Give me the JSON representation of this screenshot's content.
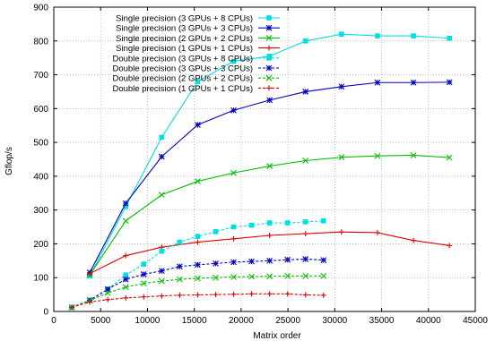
{
  "chart_data": {
    "type": "line",
    "title": "",
    "xlabel": "Matrix order",
    "ylabel": "Gflop/s",
    "xlim": [
      0,
      45000
    ],
    "ylim": [
      0,
      900
    ],
    "xticks": [
      0,
      5000,
      10000,
      15000,
      20000,
      25000,
      30000,
      35000,
      40000,
      45000
    ],
    "yticks": [
      0,
      100,
      200,
      300,
      400,
      500,
      600,
      700,
      800,
      900
    ],
    "grid": true,
    "legend_position": "top-left",
    "series": [
      {
        "name": "Single precision (3 GPUs + 8 CPUs)",
        "color": "#00e0e0",
        "marker": "filled-square",
        "dash": "solid",
        "x": [
          3840,
          7680,
          11520,
          15360,
          19200,
          23040,
          26880,
          30720,
          34560,
          38400,
          42240
        ],
        "y": [
          105,
          310,
          515,
          680,
          740,
          755,
          800,
          820,
          815,
          815,
          808
        ]
      },
      {
        "name": "Single precision (3 GPUs + 3 CPUs)",
        "color": "#0000c8",
        "marker": "asterisk",
        "dash": "solid",
        "x": [
          3840,
          7680,
          11520,
          15360,
          19200,
          23040,
          26880,
          30720,
          34560,
          38400,
          42240
        ],
        "y": [
          115,
          320,
          458,
          552,
          595,
          625,
          650,
          665,
          677,
          677,
          678
        ]
      },
      {
        "name": "Single precision (2 GPUs + 2 CPUs)",
        "color": "#00c000",
        "marker": "x",
        "dash": "solid",
        "x": [
          3840,
          7680,
          11520,
          15360,
          19200,
          23040,
          26880,
          30720,
          34560,
          38400,
          42240
        ],
        "y": [
          108,
          268,
          345,
          385,
          410,
          430,
          446,
          456,
          460,
          462,
          455
        ]
      },
      {
        "name": "Single precision (1 GPUs + 1 CPUs)",
        "color": "#e00000",
        "marker": "plus",
        "dash": "solid",
        "x": [
          3840,
          7680,
          11520,
          15360,
          19200,
          23040,
          26880,
          30720,
          34560,
          38400,
          42240
        ],
        "y": [
          112,
          165,
          190,
          205,
          215,
          225,
          230,
          235,
          233,
          210,
          195
        ]
      },
      {
        "name": "Double precision (3 GPUs + 8 CPUs)",
        "color": "#00e0e0",
        "marker": "filled-square",
        "dash": "dashed",
        "x": [
          1920,
          3840,
          5760,
          7680,
          9600,
          11520,
          13440,
          15360,
          17280,
          19200,
          21120,
          23040,
          24960,
          26880,
          28800
        ],
        "y": [
          12,
          33,
          65,
          108,
          140,
          178,
          205,
          222,
          236,
          250,
          255,
          262,
          262,
          265,
          268
        ]
      },
      {
        "name": "Double precision (3 GPUs + 3 CPUs)",
        "color": "#0000c8",
        "marker": "asterisk",
        "dash": "dashed",
        "x": [
          1920,
          3840,
          5760,
          7680,
          9600,
          11520,
          13440,
          15360,
          17280,
          19200,
          21120,
          23040,
          24960,
          26880,
          28800
        ],
        "y": [
          12,
          33,
          66,
          95,
          110,
          120,
          133,
          138,
          142,
          146,
          148,
          150,
          153,
          155,
          152
        ]
      },
      {
        "name": "Double precision (2 GPUs + 2 CPUs)",
        "color": "#00c000",
        "marker": "x",
        "dash": "dashed",
        "x": [
          1920,
          3840,
          5760,
          7680,
          9600,
          11520,
          13440,
          15360,
          17280,
          19200,
          21120,
          23040,
          24960,
          26880,
          28800
        ],
        "y": [
          12,
          32,
          55,
          72,
          83,
          90,
          95,
          98,
          100,
          102,
          103,
          104,
          105,
          105,
          105
        ]
      },
      {
        "name": "Double precision (1 GPUs + 1 CPUs)",
        "color": "#e00000",
        "marker": "plus",
        "dash": "dashed",
        "x": [
          1920,
          3840,
          5760,
          7680,
          9600,
          11520,
          13440,
          15360,
          17280,
          19200,
          21120,
          23040,
          24960,
          26880,
          28800
        ],
        "y": [
          12,
          28,
          35,
          40,
          43,
          46,
          48,
          49,
          50,
          51,
          52,
          52,
          52,
          49,
          48
        ]
      }
    ]
  }
}
